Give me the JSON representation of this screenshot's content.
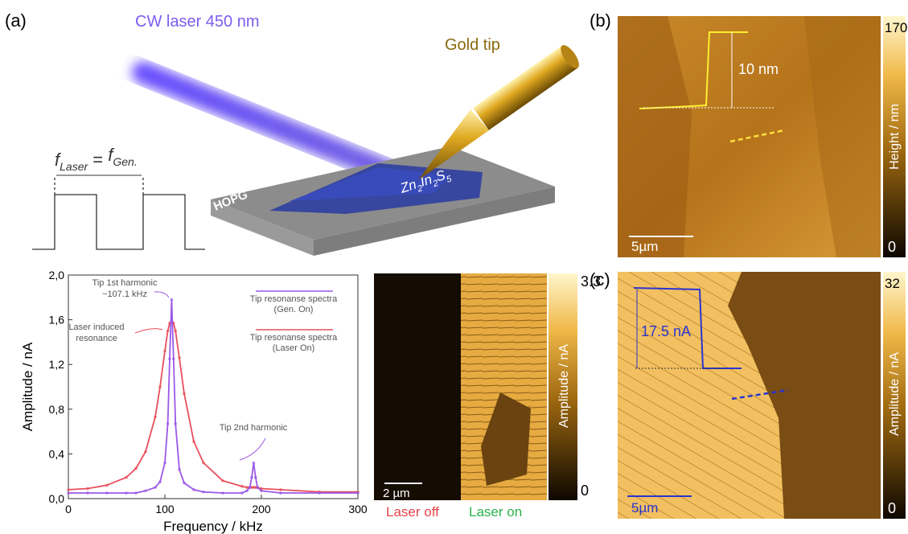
{
  "panel_a": {
    "label": "(a)",
    "laser_label": "CW laser 450 nm",
    "tip_label": "Gold tip",
    "substrate_label": "HOPG",
    "sample_formula": [
      "Zn",
      "2",
      "In",
      "2",
      "S",
      "5"
    ],
    "frequency_equation": [
      "f",
      "Laser",
      " = ",
      "f",
      "Gen."
    ]
  },
  "chart_data": {
    "type": "line",
    "x": [
      0,
      20,
      40,
      60,
      70,
      80,
      90,
      95,
      100,
      103,
      105,
      107,
      109,
      111,
      115,
      120,
      130,
      140,
      160,
      180,
      185,
      188,
      190,
      192,
      194,
      196,
      200,
      220,
      260,
      300
    ],
    "series": [
      {
        "name": "Tip resonanse spectra (Gen. On)",
        "color": "#9b59e6",
        "values": [
          0.05,
          0.05,
          0.05,
          0.05,
          0.05,
          0.07,
          0.1,
          0.15,
          0.32,
          0.67,
          1.25,
          1.78,
          1.25,
          0.67,
          0.26,
          0.14,
          0.08,
          0.06,
          0.05,
          0.05,
          0.07,
          0.1,
          0.19,
          0.32,
          0.19,
          0.1,
          0.07,
          0.05,
          0.05,
          0.05
        ]
      },
      {
        "name": "Tip resonanse spectra (Laser On)",
        "color": "#e8505b",
        "values": [
          0.08,
          0.09,
          0.12,
          0.19,
          0.27,
          0.42,
          0.73,
          1.0,
          1.32,
          1.5,
          1.57,
          1.6,
          1.57,
          1.5,
          1.26,
          0.94,
          0.51,
          0.32,
          0.16,
          0.11,
          0.1,
          0.1,
          0.1,
          0.1,
          0.1,
          0.1,
          0.09,
          0.08,
          0.06,
          0.06
        ]
      }
    ],
    "x_label": "Frequency / kHz",
    "y_label": "Amplitude / nA",
    "xlim": [
      0,
      300
    ],
    "xticks": [
      0,
      100,
      200,
      300
    ],
    "ylim": [
      0,
      2.0
    ],
    "yticks": [
      {
        "value": 0,
        "label": "0,0"
      },
      {
        "value": 0.4,
        "label": "0,4"
      },
      {
        "value": 0.8,
        "label": "0,8"
      },
      {
        "value": 1.2,
        "label": "1,2"
      },
      {
        "value": 1.6,
        "label": "1,6"
      },
      {
        "value": 2.0,
        "label": "2,0"
      }
    ],
    "annotations": [
      [
        "Tip 1st harmonic",
        "~107.1 kHz"
      ],
      [
        "Laser induced",
        "resonance"
      ],
      [
        "Tip 2nd harmonic"
      ]
    ],
    "grid": false,
    "legend": "upper right"
  },
  "map_a": {
    "colorbar_max": "3.3",
    "colorbar_min": "0",
    "colorbar_label": "Amplitude / nA",
    "scale_bar": "2 µm",
    "left_caption": "Laser off",
    "right_caption": "Laser on"
  },
  "panel_b": {
    "label": "(b)",
    "colorbar_max": "170",
    "colorbar_min": "0",
    "colorbar_label": "Height / nm",
    "profile_label": "10 nm",
    "scale_bar": "5µm"
  },
  "panel_c": {
    "label": "(c)",
    "colorbar_max": "32",
    "colorbar_min": "0",
    "colorbar_label": "Amplitude / nA",
    "profile_label": "17.5 nA",
    "scale_bar": "5µm"
  }
}
